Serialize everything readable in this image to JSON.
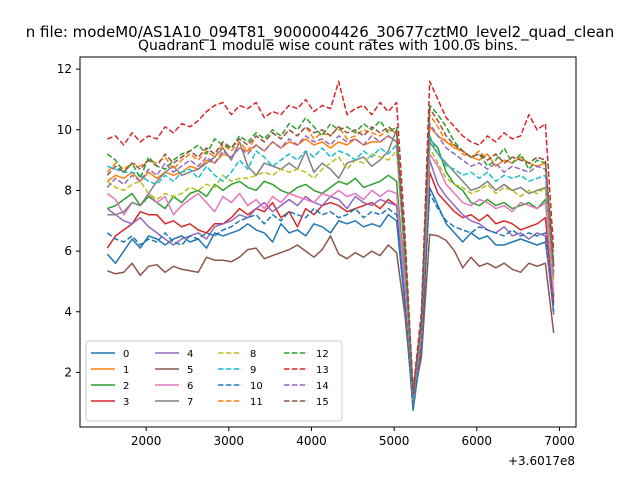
{
  "chart_data": {
    "type": "line",
    "suptitle": "n file: modeM0/AS1A10_094T81_9000004426_30677cztM0_level2_quad_clean",
    "title": "Quadrant 1 module wise count rates with 100.0s bins.",
    "xlabel": "",
    "ylabel": "",
    "x_offset_label": "+3.6017e8",
    "xlim": [
      1200,
      7200
    ],
    "ylim": [
      0.2,
      12.4
    ],
    "xticks": [
      2000,
      3000,
      4000,
      5000,
      6000,
      7000
    ],
    "yticks": [
      2,
      4,
      6,
      8,
      10,
      12
    ],
    "grid": false,
    "legend_position": "lower-left",
    "legend_columns": 4,
    "x": [
      1530,
      1630,
      1730,
      1830,
      1930,
      2030,
      2130,
      2230,
      2330,
      2430,
      2530,
      2630,
      2730,
      2830,
      2930,
      3030,
      3130,
      3230,
      3330,
      3430,
      3530,
      3630,
      3730,
      3830,
      3930,
      4030,
      4130,
      4230,
      4330,
      4430,
      4530,
      4630,
      4730,
      4830,
      4930,
      5030,
      5130,
      5230,
      5330,
      5430,
      5530,
      5630,
      5730,
      5830,
      5930,
      6030,
      6130,
      6230,
      6330,
      6430,
      6530,
      6630,
      6730,
      6830,
      6930
    ],
    "series": [
      {
        "name": "0",
        "color": "#1f77b4",
        "dash": "solid",
        "values": [
          5.9,
          5.6,
          6.0,
          6.4,
          6.1,
          6.5,
          6.4,
          6.2,
          6.4,
          6.5,
          6.3,
          6.4,
          6.1,
          6.6,
          6.5,
          6.6,
          6.7,
          6.9,
          6.7,
          6.6,
          6.3,
          6.9,
          6.6,
          6.7,
          6.5,
          6.9,
          6.8,
          6.6,
          7.0,
          6.9,
          7.0,
          6.8,
          6.9,
          6.8,
          7.2,
          7.0,
          4.2,
          0.75,
          2.8,
          8.1,
          7.5,
          6.9,
          6.6,
          6.3,
          6.6,
          6.4,
          6.5,
          6.2,
          6.2,
          6.3,
          6.4,
          6.3,
          6.2,
          6.3,
          4.2
        ]
      },
      {
        "name": "1",
        "color": "#ff7f0e",
        "dash": "solid",
        "values": [
          8.3,
          8.5,
          8.4,
          8.6,
          8.3,
          8.6,
          8.4,
          8.6,
          8.5,
          8.6,
          8.8,
          8.7,
          9.0,
          8.9,
          9.2,
          9.1,
          9.4,
          9.3,
          9.5,
          9.3,
          9.6,
          9.4,
          9.6,
          9.5,
          9.7,
          9.5,
          9.6,
          9.4,
          9.6,
          9.5,
          9.7,
          9.5,
          9.6,
          9.6,
          9.8,
          9.6,
          5.8,
          1.2,
          3.5,
          10.1,
          9.8,
          9.6,
          9.4,
          9.3,
          9.1,
          9.0,
          9.2,
          8.8,
          9.0,
          8.9,
          9.1,
          8.9,
          8.8,
          8.9,
          5.5
        ]
      },
      {
        "name": "2",
        "color": "#2ca02c",
        "dash": "solid",
        "values": [
          7.4,
          7.5,
          7.7,
          7.9,
          7.5,
          7.8,
          7.6,
          7.4,
          7.8,
          7.6,
          7.9,
          8.0,
          7.8,
          8.2,
          8.0,
          8.2,
          8.3,
          8.1,
          8.0,
          8.3,
          8.2,
          8.0,
          7.9,
          8.1,
          8.2,
          8.0,
          7.9,
          8.1,
          8.3,
          8.2,
          8.4,
          8.1,
          8.2,
          8.3,
          8.5,
          8.3,
          5.0,
          0.95,
          3.2,
          9.7,
          9.4,
          8.6,
          8.2,
          8.0,
          7.6,
          7.5,
          7.7,
          7.5,
          7.6,
          7.4,
          7.5,
          7.6,
          7.4,
          7.7,
          4.5
        ]
      },
      {
        "name": "3",
        "color": "#d62728",
        "dash": "solid",
        "values": [
          6.1,
          6.5,
          6.7,
          6.9,
          7.3,
          7.2,
          7.2,
          6.9,
          7.0,
          6.8,
          6.9,
          6.7,
          6.6,
          6.9,
          6.9,
          7.1,
          7.4,
          7.2,
          7.4,
          7.3,
          7.6,
          7.1,
          7.3,
          6.8,
          7.4,
          7.2,
          7.5,
          7.6,
          7.5,
          7.3,
          7.4,
          7.5,
          7.6,
          7.4,
          7.7,
          7.5,
          4.6,
          0.85,
          3.0,
          8.6,
          7.9,
          7.6,
          7.3,
          7.1,
          7.2,
          7.0,
          7.2,
          6.9,
          7.0,
          6.9,
          6.7,
          6.8,
          6.9,
          7.1,
          4.3
        ]
      },
      {
        "name": "4",
        "color": "#9467bd",
        "dash": "solid",
        "values": [
          7.4,
          7.2,
          7.0,
          6.9,
          7.1,
          6.8,
          6.6,
          6.4,
          6.2,
          6.4,
          6.5,
          6.6,
          6.4,
          6.8,
          6.9,
          7.0,
          7.2,
          7.1,
          7.4,
          7.6,
          7.3,
          7.5,
          7.7,
          7.5,
          7.8,
          7.6,
          7.5,
          7.8,
          7.7,
          7.4,
          7.8,
          7.6,
          7.5,
          7.7,
          7.6,
          7.5,
          4.5,
          0.9,
          3.0,
          9.0,
          8.2,
          7.8,
          7.5,
          7.2,
          7.0,
          6.9,
          6.7,
          6.6,
          6.8,
          6.5,
          6.6,
          6.4,
          6.6,
          6.5,
          3.9
        ]
      },
      {
        "name": "5",
        "color": "#8c564b",
        "dash": "solid",
        "values": [
          5.35,
          5.25,
          5.3,
          5.6,
          5.2,
          5.5,
          5.55,
          5.3,
          5.5,
          5.4,
          5.35,
          5.3,
          5.8,
          5.7,
          5.7,
          5.65,
          5.8,
          6.05,
          6.1,
          5.75,
          5.85,
          5.95,
          6.05,
          6.2,
          6.0,
          5.8,
          6.05,
          6.5,
          5.9,
          5.75,
          5.95,
          5.8,
          6.0,
          5.85,
          6.2,
          5.95,
          3.9,
          1.1,
          2.5,
          6.55,
          6.5,
          6.35,
          6.0,
          5.45,
          5.8,
          5.5,
          5.6,
          5.45,
          5.6,
          5.4,
          5.3,
          5.6,
          5.5,
          5.6,
          3.3
        ]
      },
      {
        "name": "6",
        "color": "#e377c2",
        "dash": "solid",
        "values": [
          7.9,
          7.7,
          7.2,
          7.6,
          7.5,
          7.9,
          7.6,
          7.8,
          7.2,
          7.5,
          7.7,
          7.9,
          7.6,
          7.3,
          7.8,
          7.6,
          7.9,
          7.5,
          7.7,
          7.4,
          7.8,
          7.6,
          7.9,
          7.8,
          7.7,
          7.6,
          7.9,
          7.8,
          8.0,
          7.8,
          7.9,
          7.7,
          8.0,
          7.8,
          8.0,
          7.9,
          4.9,
          1.05,
          3.3,
          9.2,
          8.8,
          8.2,
          7.9,
          7.6,
          7.5,
          7.7,
          7.6,
          7.4,
          7.5,
          7.3,
          7.6,
          7.5,
          7.4,
          7.6,
          4.6
        ]
      },
      {
        "name": "7",
        "color": "#7f7f7f",
        "dash": "solid",
        "values": [
          7.2,
          7.2,
          7.3,
          7.6,
          7.5,
          7.9,
          8.3,
          8.6,
          8.8,
          8.5,
          8.6,
          8.7,
          8.9,
          9.1,
          9.4,
          9.0,
          9.6,
          8.8,
          8.5,
          8.9,
          8.8,
          8.7,
          8.9,
          8.7,
          9.3,
          8.6,
          8.9,
          8.7,
          8.4,
          8.9,
          9.0,
          9.1,
          8.8,
          9.0,
          9.3,
          10.0,
          5.5,
          1.0,
          3.6,
          9.6,
          9.2,
          8.9,
          8.6,
          8.3,
          8.0,
          8.1,
          8.3,
          8.0,
          8.2,
          8.0,
          8.1,
          7.9,
          8.0,
          8.1,
          5.1
        ]
      },
      {
        "name": "8",
        "color": "#bcbd22",
        "dash": "dashed",
        "values": [
          8.3,
          8.1,
          8.0,
          8.2,
          8.3,
          7.9,
          7.7,
          7.9,
          7.8,
          7.9,
          8.1,
          8.0,
          8.2,
          8.1,
          8.5,
          8.3,
          8.4,
          8.4,
          8.5,
          8.6,
          8.5,
          8.7,
          8.6,
          8.7,
          8.6,
          8.4,
          8.7,
          8.9,
          9.1,
          8.7,
          9.0,
          8.9,
          9.2,
          9.1,
          9.0,
          9.3,
          5.7,
          1.1,
          3.5,
          9.4,
          8.9,
          8.4,
          8.2,
          8.1,
          7.9,
          8.0,
          8.2,
          7.9,
          8.1,
          8.0,
          7.8,
          8.0,
          7.9,
          8.1,
          4.9
        ]
      },
      {
        "name": "9",
        "color": "#17becf",
        "dash": "dashed",
        "values": [
          8.8,
          8.7,
          8.6,
          8.6,
          8.5,
          8.3,
          8.2,
          8.5,
          8.3,
          8.6,
          8.7,
          8.4,
          8.8,
          8.5,
          8.3,
          8.6,
          9.0,
          8.7,
          9.3,
          9.1,
          8.8,
          9.0,
          9.2,
          9.0,
          9.3,
          9.1,
          9.4,
          9.1,
          9.3,
          9.2,
          9.0,
          9.3,
          9.1,
          9.4,
          9.2,
          9.5,
          5.8,
          1.15,
          3.6,
          9.8,
          9.2,
          8.8,
          8.7,
          8.5,
          8.6,
          8.4,
          8.6,
          8.3,
          8.5,
          8.4,
          8.5,
          8.3,
          8.4,
          8.5,
          5.2
        ]
      },
      {
        "name": "10",
        "color": "#1f77b4",
        "dash": "dashed",
        "values": [
          6.6,
          6.4,
          6.3,
          6.5,
          6.2,
          6.4,
          6.3,
          6.6,
          6.3,
          6.2,
          6.5,
          6.4,
          6.6,
          6.5,
          6.7,
          6.8,
          7.0,
          7.1,
          7.2,
          6.9,
          7.2,
          7.0,
          7.3,
          7.2,
          7.1,
          7.4,
          7.2,
          7.3,
          7.1,
          7.2,
          7.4,
          7.1,
          7.3,
          7.2,
          7.4,
          7.2,
          4.3,
          0.8,
          2.9,
          7.9,
          7.4,
          7.0,
          6.8,
          6.7,
          6.6,
          6.8,
          6.7,
          6.6,
          6.5,
          6.7,
          6.5,
          6.6,
          6.5,
          6.6,
          4.0
        ]
      },
      {
        "name": "11",
        "color": "#ff7f0e",
        "dash": "dashed",
        "values": [
          8.6,
          8.9,
          8.7,
          8.9,
          8.8,
          9.0,
          8.9,
          9.1,
          8.7,
          9.0,
          9.2,
          9.0,
          9.3,
          9.1,
          9.5,
          9.3,
          9.6,
          9.3,
          9.8,
          9.6,
          9.9,
          9.7,
          10.0,
          9.8,
          10.1,
          9.7,
          9.9,
          9.8,
          10.1,
          9.7,
          9.8,
          10.0,
          9.9,
          9.8,
          10.0,
          9.9,
          6.1,
          1.25,
          3.7,
          10.5,
          10.1,
          9.6,
          9.5,
          9.2,
          9.1,
          9.3,
          9.0,
          9.2,
          8.9,
          9.1,
          9.0,
          8.9,
          9.1,
          9.0,
          5.6
        ]
      },
      {
        "name": "12",
        "color": "#2ca02c",
        "dash": "dashed",
        "values": [
          9.2,
          9.0,
          8.6,
          8.9,
          8.4,
          9.1,
          8.8,
          8.7,
          9.0,
          9.2,
          9.3,
          9.5,
          9.2,
          9.7,
          9.5,
          9.4,
          9.8,
          9.6,
          9.9,
          9.7,
          10.0,
          9.8,
          10.2,
          10.0,
          10.4,
          10.1,
          9.8,
          10.2,
          10.0,
          10.1,
          9.9,
          10.2,
          10.0,
          10.3,
          9.9,
          10.1,
          6.2,
          1.3,
          3.8,
          10.8,
          10.5,
          10.1,
          9.6,
          9.3,
          9.1,
          9.2,
          8.8,
          9.0,
          9.4,
          8.9,
          9.2,
          8.7,
          9.0,
          8.9,
          5.6
        ]
      },
      {
        "name": "13",
        "color": "#d62728",
        "dash": "dashed",
        "values": [
          9.7,
          9.8,
          9.5,
          9.9,
          9.6,
          9.8,
          9.7,
          10.1,
          9.9,
          10.2,
          10.1,
          10.3,
          10.6,
          10.8,
          10.9,
          10.5,
          10.8,
          10.7,
          10.9,
          10.4,
          10.6,
          10.5,
          10.8,
          10.7,
          11.0,
          10.6,
          10.8,
          10.7,
          11.6,
          10.5,
          10.7,
          10.8,
          10.5,
          10.9,
          10.6,
          10.9,
          6.6,
          1.4,
          4.0,
          11.6,
          11.0,
          10.4,
          10.1,
          9.8,
          9.6,
          9.5,
          9.8,
          9.6,
          9.9,
          9.7,
          9.8,
          10.5,
          10.0,
          10.2,
          6.0
        ]
      },
      {
        "name": "14",
        "color": "#9467bd",
        "dash": "dashed",
        "values": [
          8.1,
          8.4,
          8.2,
          8.5,
          8.3,
          8.7,
          8.5,
          8.9,
          8.6,
          8.8,
          9.0,
          8.8,
          9.1,
          8.9,
          9.3,
          9.1,
          9.4,
          9.2,
          9.5,
          9.3,
          9.6,
          9.4,
          9.7,
          9.5,
          9.8,
          9.6,
          9.7,
          9.5,
          9.8,
          9.6,
          9.7,
          9.5,
          9.8,
          9.6,
          9.8,
          9.6,
          5.9,
          1.2,
          3.6,
          10.2,
          9.8,
          9.4,
          9.2,
          9.0,
          8.8,
          8.9,
          8.7,
          8.9,
          8.6,
          8.8,
          8.7,
          8.6,
          8.8,
          8.7,
          5.3
        ]
      },
      {
        "name": "15",
        "color": "#8c564b",
        "dash": "dashed",
        "values": [
          8.5,
          8.8,
          8.6,
          8.9,
          8.7,
          9.0,
          8.8,
          9.2,
          8.9,
          9.1,
          9.3,
          9.1,
          9.4,
          9.2,
          9.6,
          9.4,
          9.7,
          9.5,
          9.8,
          9.6,
          9.9,
          9.7,
          10.0,
          9.8,
          10.1,
          9.9,
          10.0,
          9.8,
          10.1,
          9.9,
          10.0,
          9.8,
          10.1,
          9.9,
          10.1,
          9.9,
          6.1,
          1.3,
          3.7,
          10.7,
          10.3,
          9.8,
          9.5,
          9.3,
          9.1,
          9.2,
          9.0,
          9.2,
          8.9,
          9.1,
          9.0,
          8.9,
          9.1,
          9.0,
          5.5
        ]
      }
    ]
  }
}
